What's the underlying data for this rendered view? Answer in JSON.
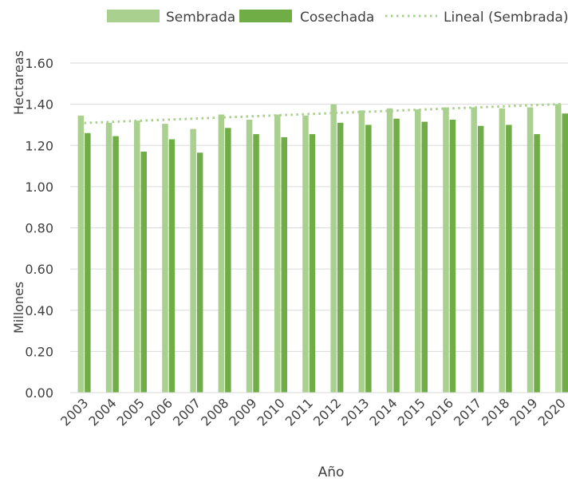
{
  "chart_data": {
    "type": "bar",
    "categories": [
      "2003",
      "2004",
      "2005",
      "2006",
      "2007",
      "2008",
      "2009",
      "2010",
      "2011",
      "2012",
      "2013",
      "2014",
      "2015",
      "2016",
      "2017",
      "2018",
      "2019",
      "2020"
    ],
    "series": [
      {
        "name": "Sembrada",
        "color": "#a9d08e",
        "values": [
          1.345,
          1.31,
          1.32,
          1.305,
          1.28,
          1.35,
          1.325,
          1.35,
          1.345,
          1.4,
          1.37,
          1.38,
          1.375,
          1.385,
          1.385,
          1.38,
          1.385,
          1.4
        ]
      },
      {
        "name": "Cosechada",
        "color": "#70ad47",
        "values": [
          1.26,
          1.245,
          1.17,
          1.23,
          1.165,
          1.285,
          1.255,
          1.24,
          1.255,
          1.31,
          1.3,
          1.33,
          1.315,
          1.325,
          1.295,
          1.3,
          1.255,
          1.355
        ]
      }
    ],
    "trendline": {
      "name": "Lineal (Sembrada)",
      "series": "Sembrada",
      "color": "#a9d08e",
      "style": "dotted"
    },
    "ylim": [
      0,
      1.6
    ],
    "yticks": [
      "0.00",
      "0.20",
      "0.40",
      "0.60",
      "0.80",
      "1.00",
      "1.20",
      "1.40",
      "1.60"
    ],
    "ylabel_units": "Hectareas",
    "ylabel_scale": "Millones",
    "xlabel": "Año",
    "grid": true,
    "legend_position": "top"
  }
}
